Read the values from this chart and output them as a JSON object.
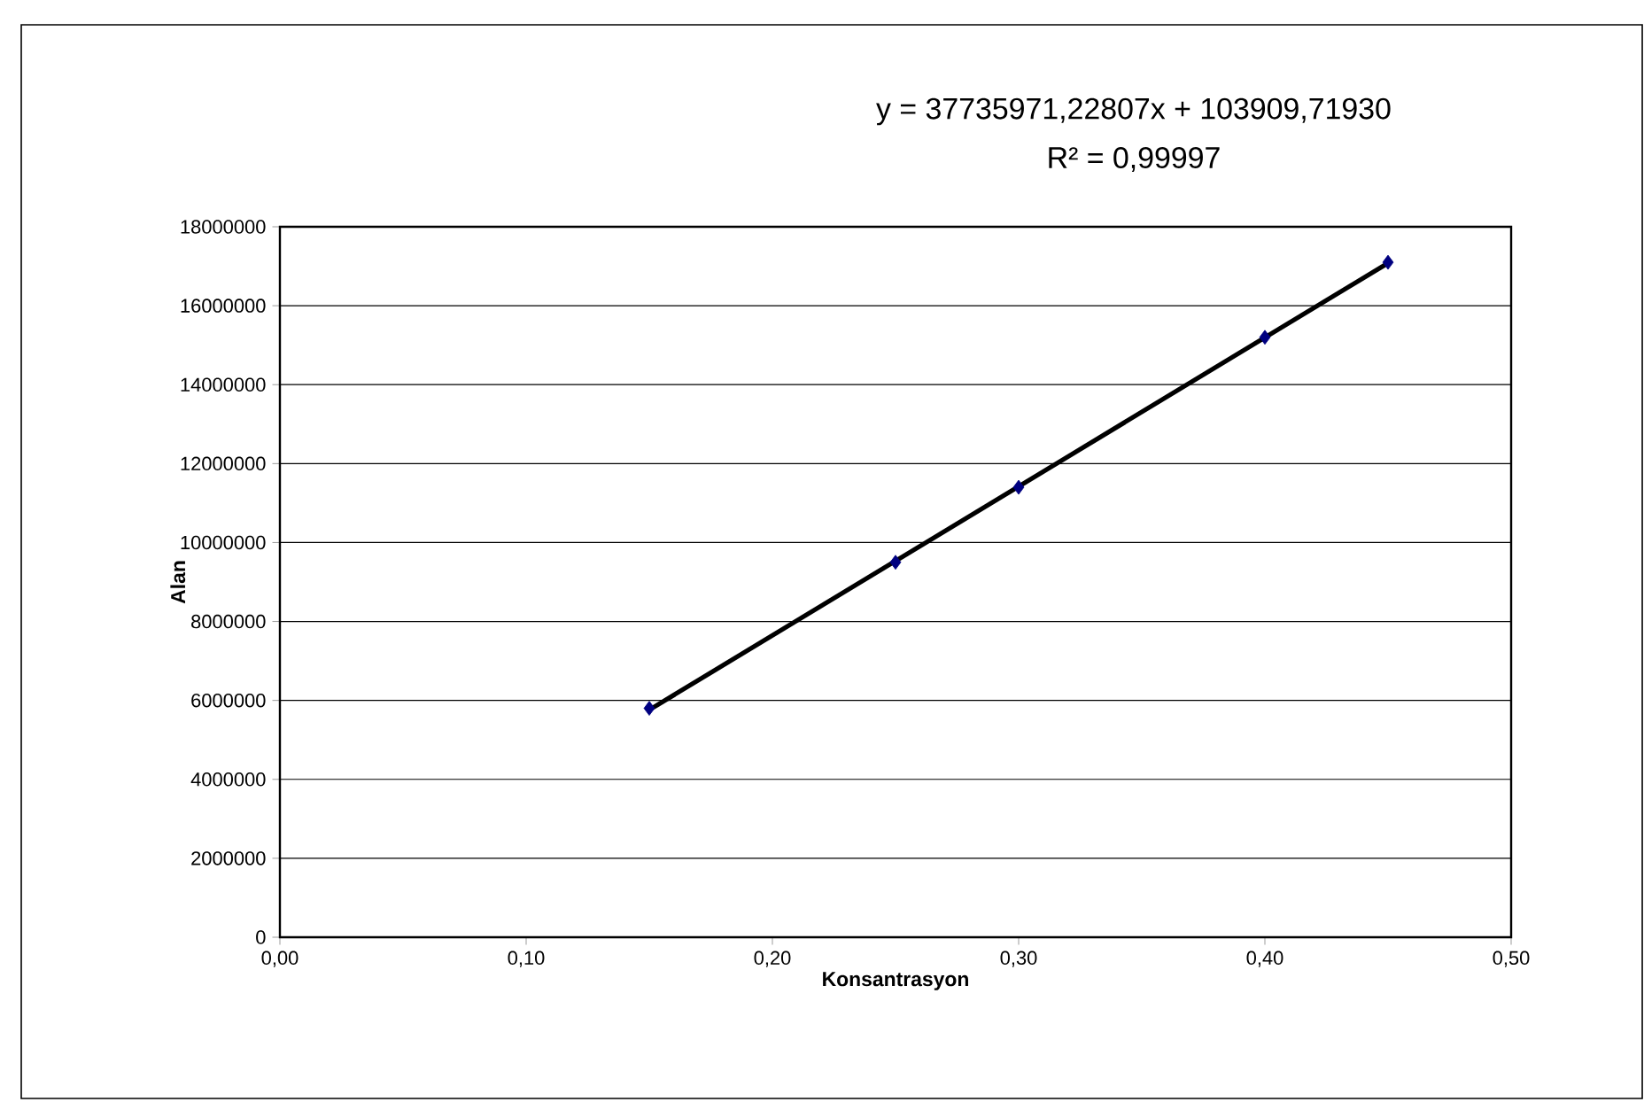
{
  "chart_data": {
    "type": "scatter",
    "xlabel": "Konsantrasyon",
    "ylabel": "Alan",
    "annotations": [
      "y = 37735971,22807x + 103909,71930",
      "R² = 0,99997"
    ],
    "series": [
      {
        "color": "#000080",
        "marker": "diamond",
        "x": [
          0.15,
          0.25,
          0.3,
          0.4,
          0.45
        ],
        "values": [
          5800000,
          9500000,
          11400000,
          15200000,
          17100000
        ]
      },
      {
        "type": "line",
        "color": "#000000",
        "marker": "none",
        "line_style": "solid",
        "x": [
          0.15,
          0.45
        ],
        "values": [
          5760000,
          17080000
        ]
      }
    ],
    "xlim": [
      0,
      0.5
    ],
    "xticks": [
      {
        "value": 0,
        "label": "0,00"
      },
      {
        "value": 0.1,
        "label": "0,10"
      },
      {
        "value": 0.2,
        "label": "0,20"
      },
      {
        "value": 0.3,
        "label": "0,30"
      },
      {
        "value": 0.4,
        "label": "0,40"
      },
      {
        "value": 0.5,
        "label": "0,50"
      }
    ],
    "ylim": [
      0,
      18000000
    ],
    "yticks": [
      0,
      2000000,
      4000000,
      6000000,
      8000000,
      10000000,
      12000000,
      14000000,
      16000000,
      18000000
    ],
    "grid": "y"
  }
}
